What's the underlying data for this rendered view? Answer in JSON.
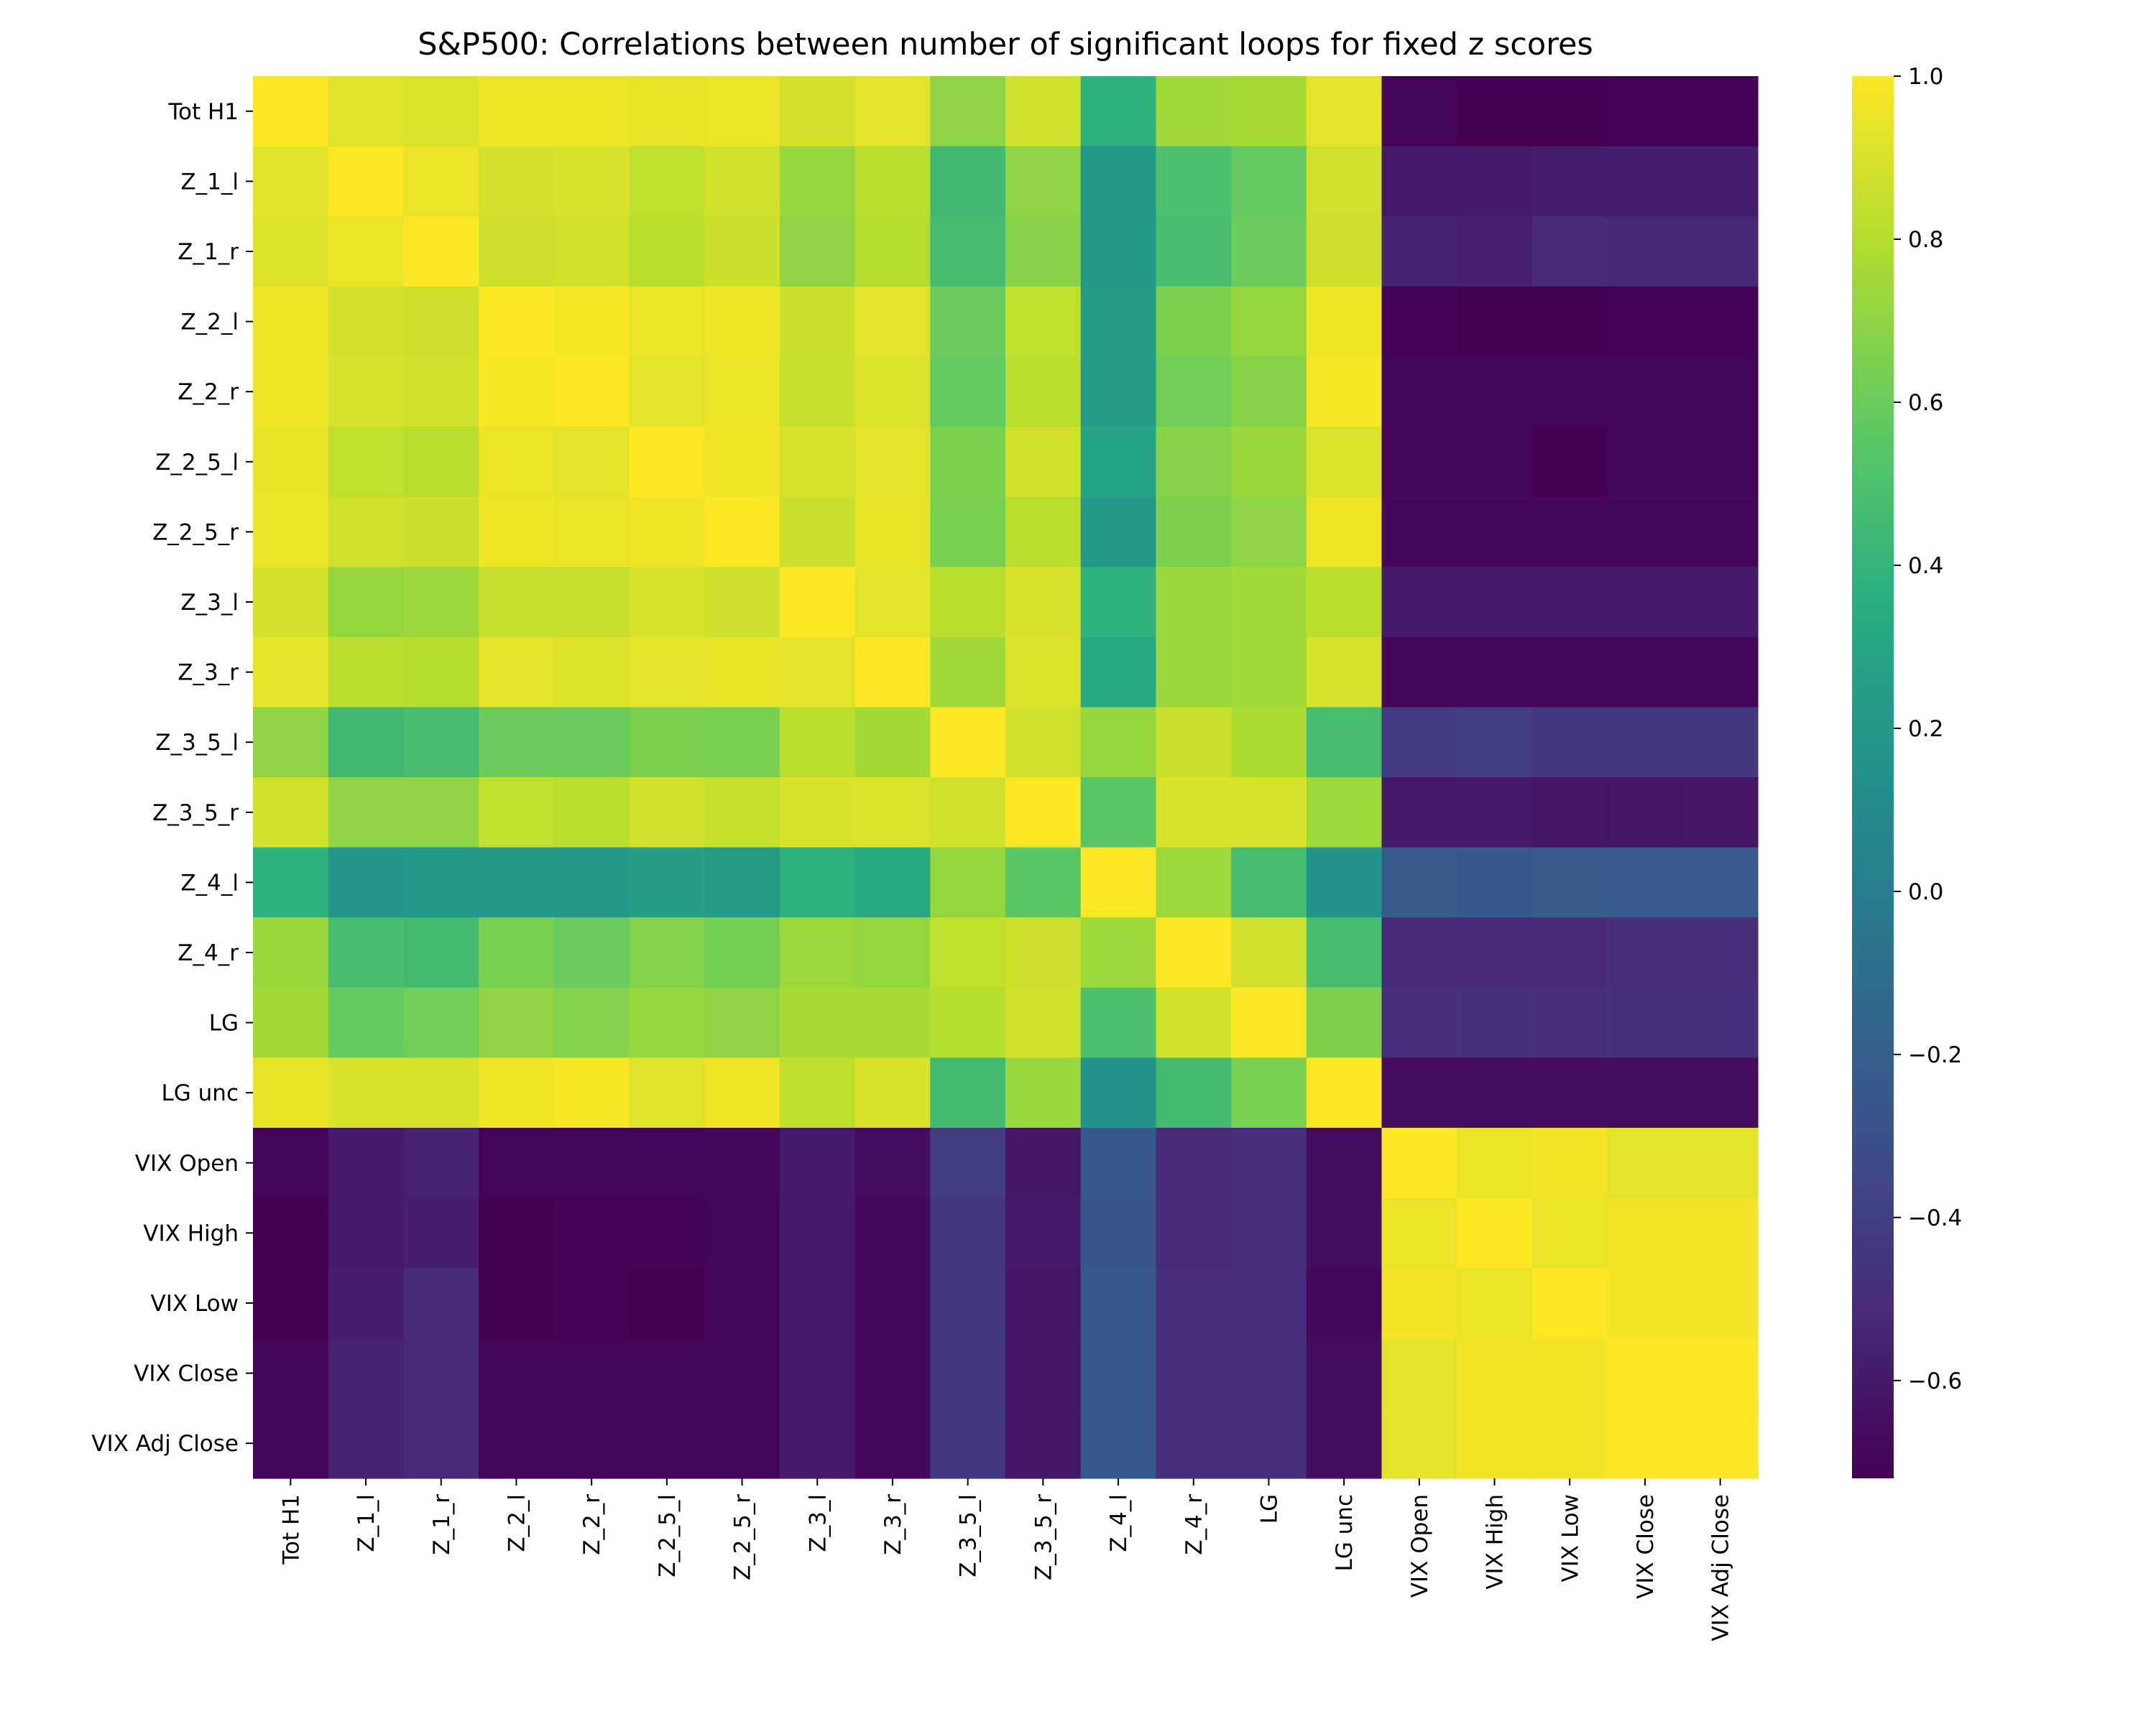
{
  "chart_data": {
    "type": "heatmap",
    "title": "S&P500: Correlations between number of significant loops for fixed z scores",
    "labels": [
      "Tot H1",
      "Z_1_l",
      "Z_1_r",
      "Z_2_l",
      "Z_2_r",
      "Z_2_5_l",
      "Z_2_5_r",
      "Z_3_l",
      "Z_3_r",
      "Z_3_5_l",
      "Z_3_5_r",
      "Z_4_l",
      "Z_4_r",
      "LG",
      "LG unc",
      "VIX Open",
      "VIX High",
      "VIX Low",
      "VIX Close",
      "VIX Adj Close"
    ],
    "colormap": "viridis",
    "vmin": -0.72,
    "vmax": 1.0,
    "colorbar_ticks": [
      -0.6,
      -0.4,
      -0.2,
      0.0,
      0.2,
      0.4,
      0.6,
      0.8,
      1.0
    ],
    "colorbar_tick_labels": [
      "−0.6",
      "−0.4",
      "−0.2",
      "0.0",
      "0.2",
      "0.4",
      "0.6",
      "0.8",
      "1.0"
    ],
    "values": [
      [
        1,
        0.92,
        0.91,
        0.96,
        0.96,
        0.94,
        0.95,
        0.89,
        0.93,
        0.7,
        0.88,
        0.38,
        0.75,
        0.77,
        0.93,
        -0.7,
        -0.72,
        -0.72,
        -0.71,
        -0.71
      ],
      [
        0.92,
        1,
        0.95,
        0.89,
        0.9,
        0.84,
        0.88,
        0.72,
        0.82,
        0.45,
        0.7,
        0.2,
        0.5,
        0.58,
        0.88,
        -0.6,
        -0.6,
        -0.58,
        -0.58,
        -0.58
      ],
      [
        0.91,
        0.95,
        1,
        0.87,
        0.88,
        0.82,
        0.86,
        0.7,
        0.8,
        0.47,
        0.68,
        0.2,
        0.48,
        0.6,
        0.87,
        -0.55,
        -0.57,
        -0.52,
        -0.53,
        -0.53
      ],
      [
        0.96,
        0.89,
        0.87,
        1,
        0.98,
        0.95,
        0.96,
        0.86,
        0.93,
        0.6,
        0.84,
        0.22,
        0.65,
        0.72,
        0.96,
        -0.71,
        -0.72,
        -0.72,
        -0.71,
        -0.71
      ],
      [
        0.96,
        0.9,
        0.88,
        0.98,
        1,
        0.93,
        0.95,
        0.85,
        0.91,
        0.58,
        0.82,
        0.22,
        0.62,
        0.68,
        0.98,
        -0.7,
        -0.7,
        -0.7,
        -0.7,
        -0.7
      ],
      [
        0.94,
        0.84,
        0.82,
        0.95,
        0.93,
        1,
        0.96,
        0.9,
        0.93,
        0.65,
        0.88,
        0.27,
        0.68,
        0.73,
        0.91,
        -0.7,
        -0.7,
        -0.72,
        -0.7,
        -0.7
      ],
      [
        0.95,
        0.88,
        0.86,
        0.96,
        0.95,
        0.96,
        1,
        0.86,
        0.94,
        0.64,
        0.82,
        0.2,
        0.66,
        0.7,
        0.96,
        -0.68,
        -0.68,
        -0.68,
        -0.68,
        -0.68
      ],
      [
        0.89,
        0.72,
        0.74,
        0.85,
        0.85,
        0.9,
        0.87,
        1,
        0.93,
        0.82,
        0.9,
        0.38,
        0.73,
        0.75,
        0.82,
        -0.6,
        -0.6,
        -0.6,
        -0.6,
        -0.6
      ],
      [
        0.93,
        0.82,
        0.8,
        0.93,
        0.91,
        0.93,
        0.94,
        0.93,
        1,
        0.75,
        0.91,
        0.32,
        0.73,
        0.75,
        0.9,
        -0.68,
        -0.68,
        -0.68,
        -0.68,
        -0.68
      ],
      [
        0.7,
        0.45,
        0.48,
        0.6,
        0.6,
        0.65,
        0.64,
        0.82,
        0.76,
        1,
        0.88,
        0.72,
        0.86,
        0.78,
        0.48,
        -0.43,
        -0.42,
        -0.44,
        -0.44,
        -0.44
      ],
      [
        0.88,
        0.7,
        0.7,
        0.84,
        0.82,
        0.88,
        0.85,
        0.9,
        0.91,
        0.88,
        1,
        0.55,
        0.9,
        0.9,
        0.74,
        -0.6,
        -0.6,
        -0.62,
        -0.62,
        -0.62
      ],
      [
        0.38,
        0.18,
        0.2,
        0.2,
        0.2,
        0.25,
        0.22,
        0.38,
        0.32,
        0.72,
        0.55,
        1,
        0.74,
        0.48,
        0.16,
        -0.22,
        -0.25,
        -0.22,
        -0.23,
        -0.23
      ],
      [
        0.73,
        0.48,
        0.46,
        0.64,
        0.6,
        0.67,
        0.63,
        0.74,
        0.72,
        0.84,
        0.87,
        0.74,
        1,
        0.88,
        0.48,
        -0.52,
        -0.52,
        -0.52,
        -0.5,
        -0.5
      ],
      [
        0.76,
        0.58,
        0.62,
        0.7,
        0.67,
        0.72,
        0.7,
        0.77,
        0.77,
        0.8,
        0.88,
        0.5,
        0.88,
        1,
        0.66,
        -0.5,
        -0.48,
        -0.5,
        -0.48,
        -0.48
      ],
      [
        0.94,
        0.9,
        0.9,
        0.96,
        0.98,
        0.92,
        0.96,
        0.83,
        0.9,
        0.46,
        0.73,
        0.16,
        0.46,
        0.64,
        1,
        -0.66,
        -0.66,
        -0.66,
        -0.66,
        -0.66
      ],
      [
        -0.7,
        -0.6,
        -0.56,
        -0.7,
        -0.7,
        -0.7,
        -0.68,
        -0.6,
        -0.66,
        -0.42,
        -0.62,
        -0.24,
        -0.52,
        -0.5,
        -0.66,
        1,
        0.95,
        0.97,
        0.93,
        0.93
      ],
      [
        -0.72,
        -0.6,
        -0.58,
        -0.72,
        -0.71,
        -0.71,
        -0.7,
        -0.6,
        -0.68,
        -0.44,
        -0.6,
        -0.26,
        -0.52,
        -0.5,
        -0.66,
        0.95,
        1,
        0.95,
        0.97,
        0.97
      ],
      [
        -0.72,
        -0.58,
        -0.52,
        -0.72,
        -0.71,
        -0.72,
        -0.7,
        -0.6,
        -0.68,
        -0.44,
        -0.62,
        -0.24,
        -0.5,
        -0.5,
        -0.68,
        0.97,
        0.95,
        1,
        0.97,
        0.97
      ],
      [
        -0.7,
        -0.56,
        -0.52,
        -0.7,
        -0.7,
        -0.7,
        -0.7,
        -0.6,
        -0.68,
        -0.44,
        -0.62,
        -0.24,
        -0.5,
        -0.5,
        -0.66,
        0.93,
        0.97,
        0.97,
        1,
        1
      ],
      [
        -0.7,
        -0.56,
        -0.52,
        -0.7,
        -0.7,
        -0.7,
        -0.7,
        -0.6,
        -0.68,
        -0.44,
        -0.62,
        -0.24,
        -0.5,
        -0.5,
        -0.66,
        0.93,
        0.97,
        0.97,
        1,
        1
      ]
    ]
  }
}
